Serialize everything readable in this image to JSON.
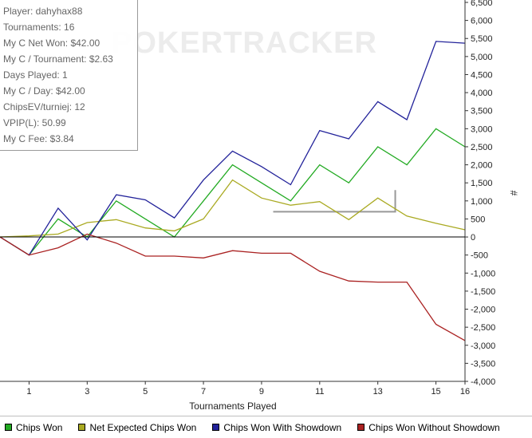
{
  "watermark": "POKERTRACKER",
  "stats": [
    "Player: dahyhax88",
    "Tournaments: 16",
    "My C Net Won: $42.00",
    "My C / Tournament: $2.63",
    "Days Played: 1",
    "My C / Day: $42.00",
    "ChipsEV/turniej: 12",
    "VPIP(L): 50.99",
    "My C Fee: $3.84"
  ],
  "chart_data": {
    "type": "line",
    "xlabel": "Tournaments Played",
    "ylabel": "#",
    "xlim": [
      0,
      16
    ],
    "ylim": [
      -4000,
      6500
    ],
    "x_ticks": [
      1,
      3,
      5,
      7,
      9,
      11,
      13,
      15,
      16
    ],
    "y_ticks": [
      6500,
      6000,
      5500,
      5000,
      4500,
      4000,
      3500,
      3000,
      2500,
      2000,
      1500,
      1000,
      500,
      0,
      -500,
      -1000,
      -1500,
      -2000,
      -2500,
      -3000,
      -3500,
      -4000
    ],
    "y_tick_labels": [
      "6,500",
      "6,000",
      "5,500",
      "5,000",
      "4,500",
      "4,000",
      "3,500",
      "3,000",
      "2,500",
      "2,000",
      "1,500",
      "1,000",
      "500",
      "0",
      "-500",
      "-1,000",
      "-1,500",
      "-2,000",
      "-2,500",
      "-3,000",
      "-3,500",
      "-4,000"
    ],
    "grid": false,
    "legend_position": "bottom",
    "x": [
      0,
      1,
      2,
      3,
      4,
      5,
      6,
      7,
      8,
      9,
      10,
      11,
      12,
      13,
      14,
      15,
      16
    ],
    "series": [
      {
        "name": "Chips Won",
        "color": "#22aa22",
        "values": [
          0,
          -500,
          500,
          0,
          1000,
          500,
          0,
          1000,
          2000,
          1500,
          1000,
          2000,
          1500,
          2500,
          2000,
          3000,
          2500
        ]
      },
      {
        "name": "Net Expected Chips Won",
        "color": "#aaaa22",
        "values": [
          0,
          30,
          80,
          400,
          480,
          250,
          170,
          500,
          1580,
          1080,
          880,
          980,
          480,
          1080,
          580,
          380,
          200
        ]
      },
      {
        "name": "Chips Won With Showdown",
        "color": "#22229a",
        "values": [
          0,
          -500,
          800,
          -80,
          1170,
          1030,
          530,
          1580,
          2380,
          1950,
          1450,
          2950,
          2720,
          3750,
          3250,
          5420,
          5370
        ]
      },
      {
        "name": "Chips Won Without Showdown",
        "color": "#aa2222",
        "values": [
          0,
          -500,
          -300,
          80,
          -170,
          -530,
          -530,
          -580,
          -380,
          -450,
          -450,
          -950,
          -1220,
          -1250,
          -1250,
          -2420,
          -2870
        ]
      }
    ]
  }
}
